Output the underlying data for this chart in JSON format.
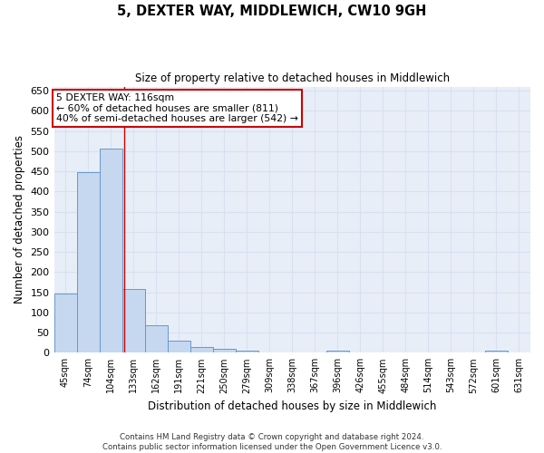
{
  "title": "5, DEXTER WAY, MIDDLEWICH, CW10 9GH",
  "subtitle": "Size of property relative to detached houses in Middlewich",
  "xlabel": "Distribution of detached houses by size in Middlewich",
  "ylabel": "Number of detached properties",
  "categories": [
    "45sqm",
    "74sqm",
    "104sqm",
    "133sqm",
    "162sqm",
    "191sqm",
    "221sqm",
    "250sqm",
    "279sqm",
    "309sqm",
    "338sqm",
    "367sqm",
    "396sqm",
    "426sqm",
    "455sqm",
    "484sqm",
    "514sqm",
    "543sqm",
    "572sqm",
    "601sqm",
    "631sqm"
  ],
  "values": [
    147,
    448,
    506,
    158,
    68,
    31,
    14,
    9,
    5,
    0,
    0,
    0,
    6,
    0,
    0,
    0,
    0,
    0,
    0,
    6,
    0
  ],
  "bar_color": "#c5d8f0",
  "bar_edge_color": "#6699cc",
  "grid_color": "#d8e0f0",
  "bg_color": "#e8eef8",
  "red_line_x": 2.58,
  "annotation_line1": "5 DEXTER WAY: 116sqm",
  "annotation_line2": "← 60% of detached houses are smaller (811)",
  "annotation_line3": "40% of semi-detached houses are larger (542) →",
  "annotation_box_color": "#ffffff",
  "annotation_box_edge": "#cc0000",
  "footer": "Contains HM Land Registry data © Crown copyright and database right 2024.\nContains public sector information licensed under the Open Government Licence v3.0.",
  "ylim": [
    0,
    660
  ],
  "yticks": [
    0,
    50,
    100,
    150,
    200,
    250,
    300,
    350,
    400,
    450,
    500,
    550,
    600,
    650
  ]
}
